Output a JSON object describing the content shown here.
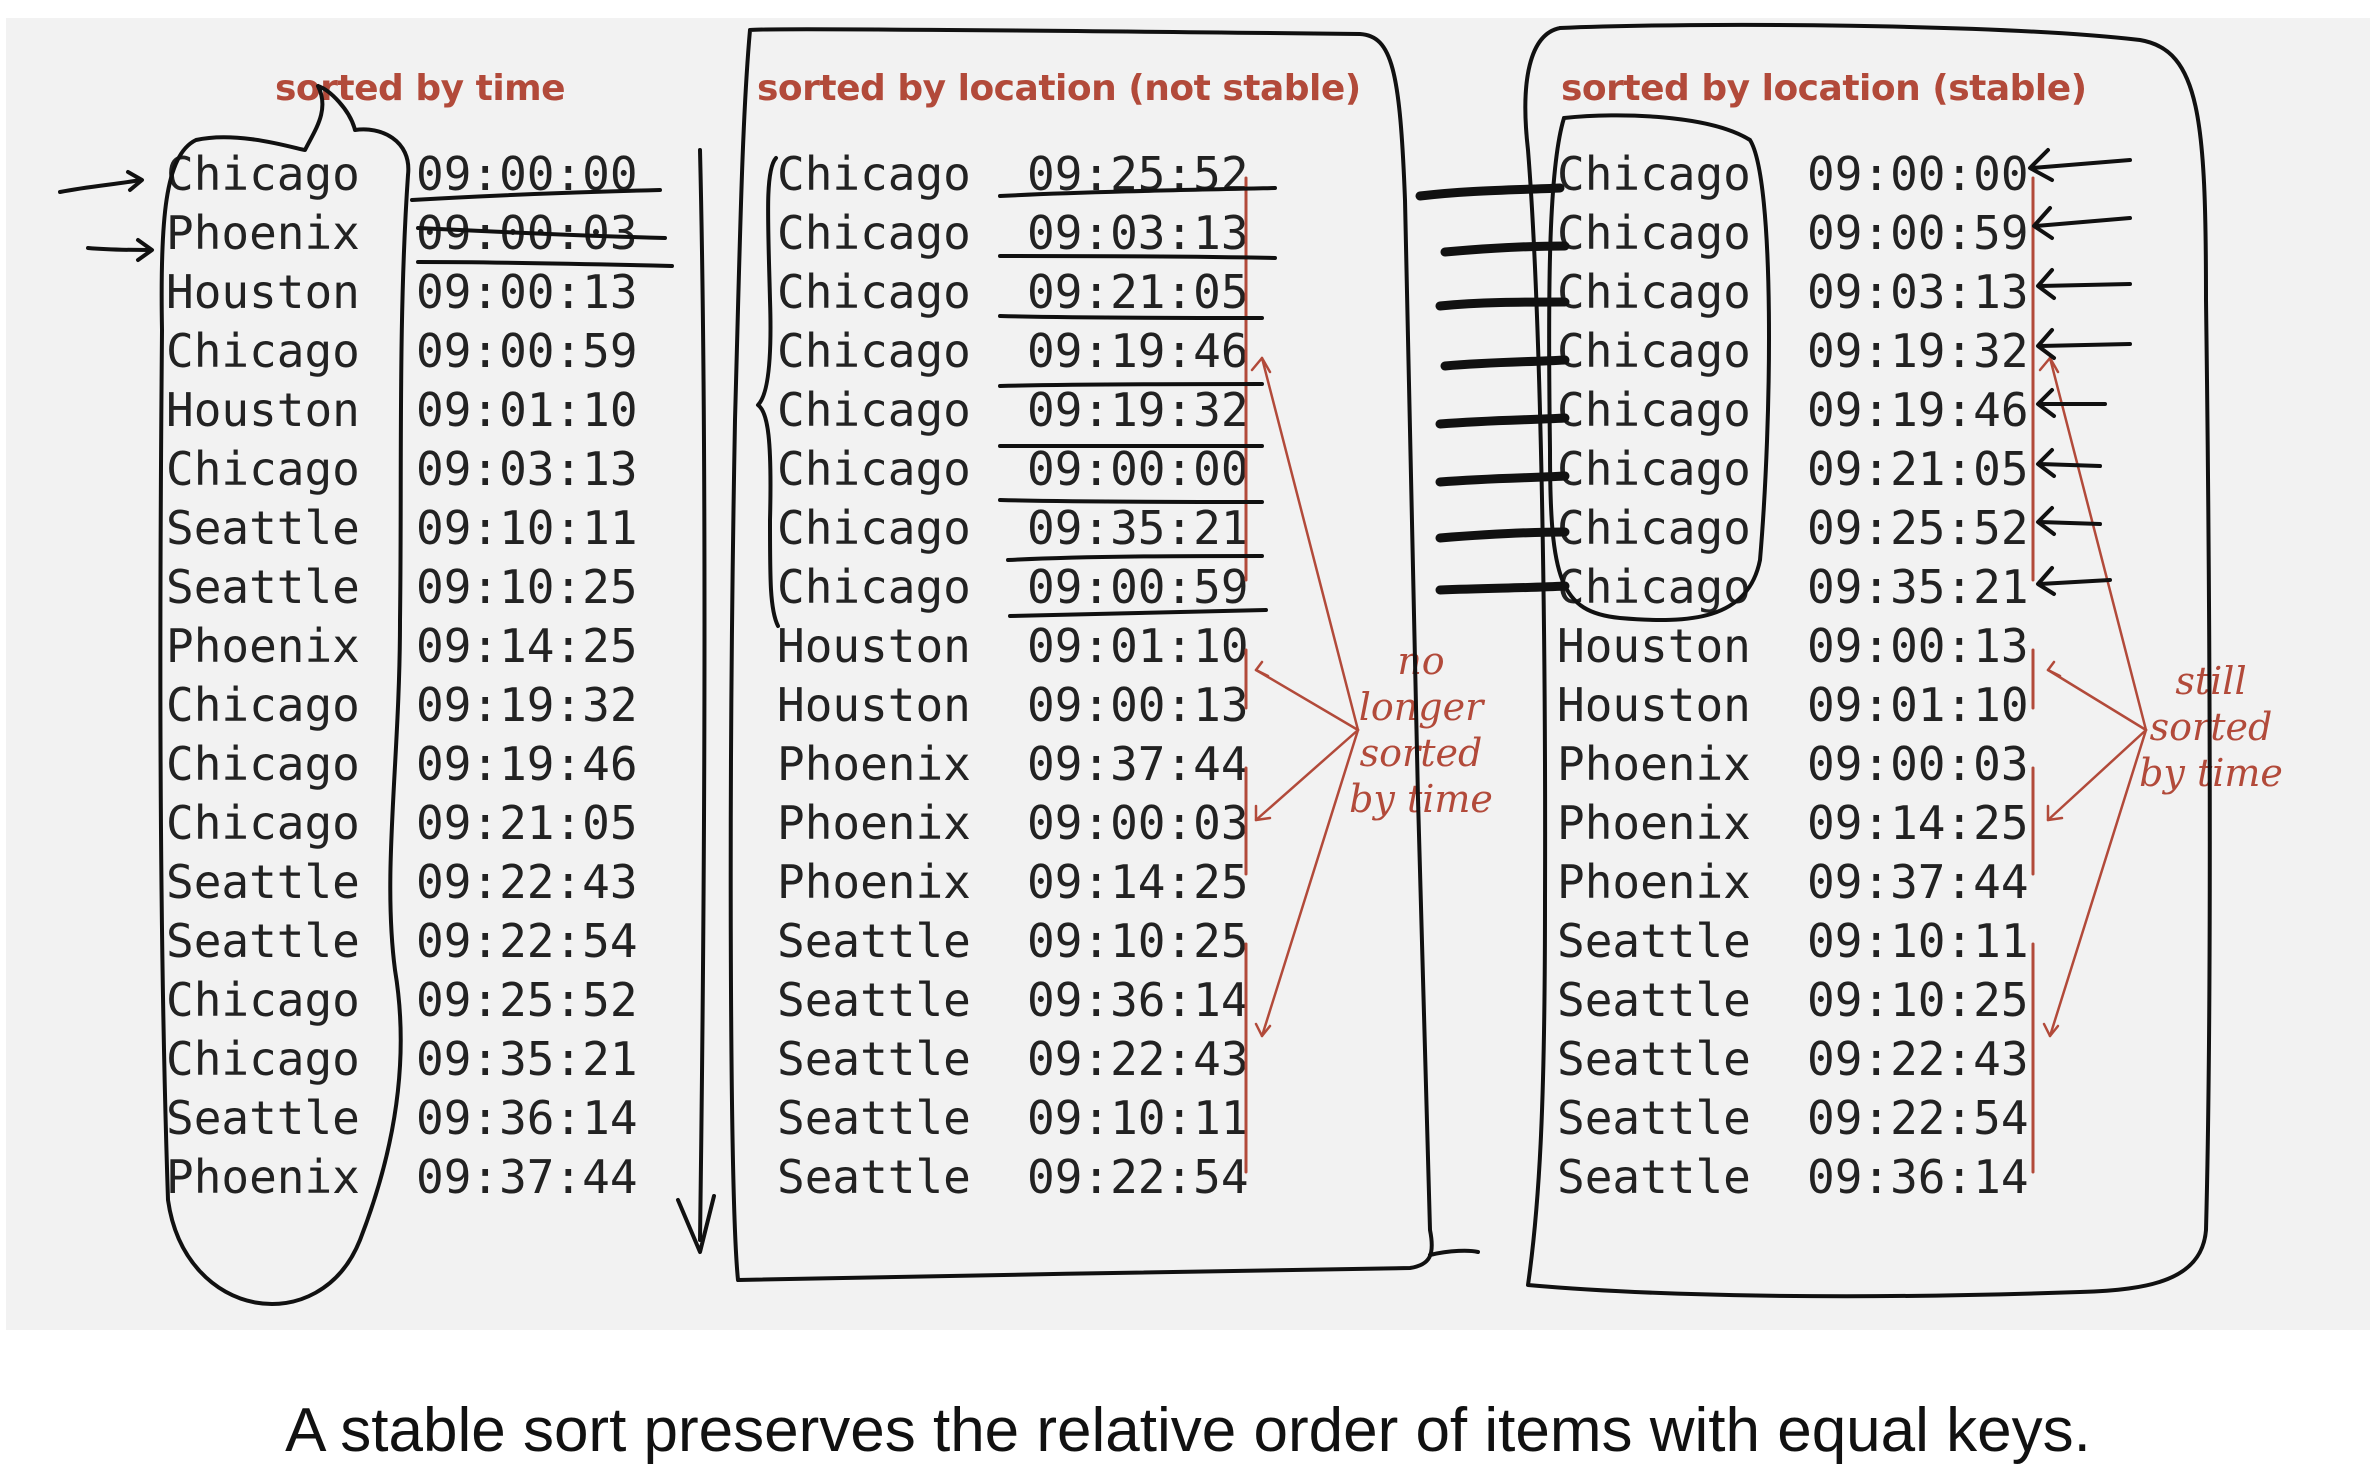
{
  "columns": [
    {
      "title": "sorted by time",
      "rows": [
        [
          "Chicago",
          "09:00:00"
        ],
        [
          "Phoenix",
          "09:00:03"
        ],
        [
          "Houston",
          "09:00:13"
        ],
        [
          "Chicago",
          "09:00:59"
        ],
        [
          "Houston",
          "09:01:10"
        ],
        [
          "Chicago",
          "09:03:13"
        ],
        [
          "Seattle",
          "09:10:11"
        ],
        [
          "Seattle",
          "09:10:25"
        ],
        [
          "Phoenix",
          "09:14:25"
        ],
        [
          "Chicago",
          "09:19:32"
        ],
        [
          "Chicago",
          "09:19:46"
        ],
        [
          "Chicago",
          "09:21:05"
        ],
        [
          "Seattle",
          "09:22:43"
        ],
        [
          "Seattle",
          "09:22:54"
        ],
        [
          "Chicago",
          "09:25:52"
        ],
        [
          "Chicago",
          "09:35:21"
        ],
        [
          "Seattle",
          "09:36:14"
        ],
        [
          "Phoenix",
          "09:37:44"
        ]
      ]
    },
    {
      "title": "sorted by location (not stable)",
      "rows": [
        [
          "Chicago",
          "09:25:52"
        ],
        [
          "Chicago",
          "09:03:13"
        ],
        [
          "Chicago",
          "09:21:05"
        ],
        [
          "Chicago",
          "09:19:46"
        ],
        [
          "Chicago",
          "09:19:32"
        ],
        [
          "Chicago",
          "09:00:00"
        ],
        [
          "Chicago",
          "09:35:21"
        ],
        [
          "Chicago",
          "09:00:59"
        ],
        [
          "Houston",
          "09:01:10"
        ],
        [
          "Houston",
          "09:00:13"
        ],
        [
          "Phoenix",
          "09:37:44"
        ],
        [
          "Phoenix",
          "09:00:03"
        ],
        [
          "Phoenix",
          "09:14:25"
        ],
        [
          "Seattle",
          "09:10:25"
        ],
        [
          "Seattle",
          "09:36:14"
        ],
        [
          "Seattle",
          "09:22:43"
        ],
        [
          "Seattle",
          "09:10:11"
        ],
        [
          "Seattle",
          "09:22:54"
        ]
      ]
    },
    {
      "title": "sorted by location (stable)",
      "rows": [
        [
          "Chicago",
          "09:00:00"
        ],
        [
          "Chicago",
          "09:00:59"
        ],
        [
          "Chicago",
          "09:03:13"
        ],
        [
          "Chicago",
          "09:19:32"
        ],
        [
          "Chicago",
          "09:19:46"
        ],
        [
          "Chicago",
          "09:21:05"
        ],
        [
          "Chicago",
          "09:25:52"
        ],
        [
          "Chicago",
          "09:35:21"
        ],
        [
          "Houston",
          "09:00:13"
        ],
        [
          "Houston",
          "09:01:10"
        ],
        [
          "Phoenix",
          "09:00:03"
        ],
        [
          "Phoenix",
          "09:14:25"
        ],
        [
          "Phoenix",
          "09:37:44"
        ],
        [
          "Seattle",
          "09:10:11"
        ],
        [
          "Seattle",
          "09:10:25"
        ],
        [
          "Seattle",
          "09:22:43"
        ],
        [
          "Seattle",
          "09:22:54"
        ],
        [
          "Seattle",
          "09:36:14"
        ]
      ]
    }
  ],
  "notes": {
    "not_stable": [
      "no",
      "longer",
      "sorted",
      "by time"
    ],
    "stable": [
      "still",
      "sorted",
      "by time"
    ]
  },
  "caption": "A stable sort preserves the relative order of items with equal keys.",
  "colors": {
    "accent": "#b24a3a",
    "ink": "#111111",
    "panel": "#f2f2f2"
  }
}
